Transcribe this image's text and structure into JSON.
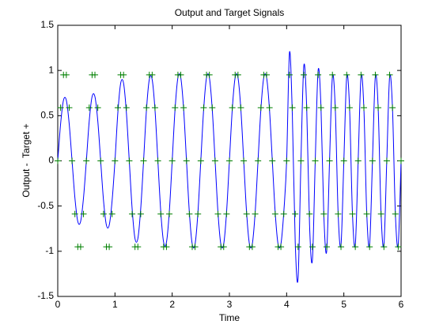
{
  "chart_data": {
    "type": "line",
    "title": "Output and Target Signals",
    "xlabel": "Time",
    "ylabel": "Output -  Target +",
    "xlim": [
      0,
      6
    ],
    "xticks": [
      0,
      1,
      2,
      3,
      4,
      5,
      6
    ],
    "ylim": [
      -1.5,
      1.5
    ],
    "yticks": [
      -1.5,
      -1,
      -0.5,
      0,
      0.5,
      1,
      1.5
    ],
    "x": [
      0,
      0.05,
      0.1,
      0.15,
      0.2,
      0.25,
      0.3,
      0.35,
      0.4,
      0.45,
      0.5,
      0.55,
      0.6,
      0.65,
      0.7,
      0.75,
      0.8,
      0.85,
      0.9,
      0.95,
      1,
      1.05,
      1.1,
      1.15,
      1.2,
      1.25,
      1.3,
      1.35,
      1.4,
      1.45,
      1.5,
      1.55,
      1.6,
      1.65,
      1.7,
      1.75,
      1.8,
      1.85,
      1.9,
      1.95,
      2,
      2.05,
      2.1,
      2.15,
      2.2,
      2.25,
      2.3,
      2.35,
      2.4,
      2.45,
      2.5,
      2.55,
      2.6,
      2.65,
      2.7,
      2.75,
      2.8,
      2.85,
      2.9,
      2.95,
      3,
      3.05,
      3.1,
      3.15,
      3.2,
      3.25,
      3.3,
      3.35,
      3.4,
      3.45,
      3.5,
      3.55,
      3.6,
      3.65,
      3.7,
      3.75,
      3.8,
      3.85,
      3.9,
      3.95,
      4,
      4.05,
      4.1,
      4.15,
      4.2,
      4.25,
      4.3,
      4.35,
      4.4,
      4.45,
      4.5,
      4.55,
      4.6,
      4.65,
      4.7,
      4.75,
      4.8,
      4.85,
      4.9,
      4.95,
      5,
      5.05,
      5.1,
      5.15,
      5.2,
      5.25,
      5.3,
      5.35,
      5.4,
      5.45,
      5.5,
      5.55,
      5.6,
      5.65,
      5.7,
      5.75,
      5.8,
      5.85,
      5.9,
      5.95,
      6
    ],
    "series": [
      {
        "color": "#0000ff",
        "style": "line",
        "values": [
          0,
          0.41,
          0.67,
          0.67,
          0.41,
          0,
          -0.41,
          -0.67,
          -0.67,
          -0.41,
          0,
          0.44,
          0.71,
          0.71,
          0.44,
          0,
          -0.44,
          -0.71,
          -0.71,
          -0.44,
          0,
          0.53,
          0.86,
          0.86,
          0.53,
          0,
          -0.53,
          -0.86,
          -0.86,
          -0.53,
          0,
          0.56,
          0.9,
          0.9,
          0.56,
          0,
          -0.56,
          -0.9,
          -0.9,
          -0.56,
          0,
          0.57,
          0.92,
          0.92,
          0.57,
          0,
          -0.57,
          -0.92,
          -0.92,
          -0.57,
          0,
          0.57,
          0.92,
          0.92,
          0.57,
          0,
          -0.57,
          -0.92,
          -0.92,
          -0.57,
          0,
          0.57,
          0.92,
          0.92,
          0.57,
          0,
          -0.57,
          -0.92,
          -0.92,
          -0.57,
          0,
          0.57,
          0.92,
          0.92,
          0.57,
          0,
          -0.57,
          -0.92,
          -0.92,
          -0.57,
          0,
          1.2,
          0.5,
          -0.9,
          -1.3,
          0,
          1.05,
          0.6,
          -0.7,
          -1.1,
          0,
          1.0,
          0.6,
          -0.6,
          -1.0,
          0,
          0.93,
          0.58,
          -0.58,
          -0.93,
          0,
          0.93,
          0.58,
          -0.58,
          -0.93,
          0,
          0.93,
          0.58,
          -0.58,
          -0.93,
          0,
          0.93,
          0.58,
          -0.58,
          -0.93,
          0,
          0.93,
          0.58,
          -0.58,
          -0.93,
          0
        ]
      },
      {
        "color": "#008000",
        "style": "marker",
        "values": [
          0,
          0.588,
          0.951,
          0.951,
          0.588,
          0,
          -0.588,
          -0.951,
          -0.951,
          -0.588,
          0,
          0.588,
          0.951,
          0.951,
          0.588,
          0,
          -0.588,
          -0.951,
          -0.951,
          -0.588,
          0,
          0.588,
          0.951,
          0.951,
          0.588,
          0,
          -0.588,
          -0.951,
          -0.951,
          -0.588,
          0,
          0.588,
          0.951,
          0.951,
          0.588,
          0,
          -0.588,
          -0.951,
          -0.951,
          -0.588,
          0,
          0.588,
          0.951,
          0.951,
          0.588,
          0,
          -0.588,
          -0.951,
          -0.951,
          -0.588,
          0,
          0.588,
          0.951,
          0.951,
          0.588,
          0,
          -0.588,
          -0.951,
          -0.951,
          -0.588,
          0,
          0.588,
          0.951,
          0.951,
          0.588,
          0,
          -0.588,
          -0.951,
          -0.951,
          -0.588,
          0,
          0.588,
          0.951,
          0.951,
          0.588,
          0,
          -0.588,
          -0.951,
          -0.951,
          -0.588,
          0,
          0.951,
          0.588,
          -0.588,
          -0.951,
          0,
          0.951,
          0.588,
          -0.588,
          -0.951,
          0,
          0.951,
          0.588,
          -0.588,
          -0.951,
          0,
          0.951,
          0.588,
          -0.588,
          -0.951,
          0,
          0.951,
          0.588,
          -0.588,
          -0.951,
          0,
          0.951,
          0.588,
          -0.588,
          -0.951,
          0,
          0.951,
          0.588,
          -0.588,
          -0.951,
          0,
          0.951,
          0.588,
          -0.588,
          -0.951,
          0
        ]
      }
    ]
  }
}
